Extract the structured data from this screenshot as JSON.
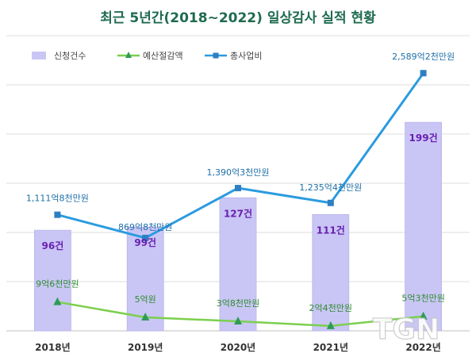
{
  "chart_data": {
    "type": "bar",
    "title": "최근 5년간(2018~2022) 일상감사 실적 현황",
    "categories": [
      "2018년",
      "2019년",
      "2020년",
      "2021년",
      "2022년"
    ],
    "legend_position": "top-left",
    "grid": true,
    "series": [
      {
        "name": "신청건수",
        "kind": "bar",
        "color": "#c9c6f5",
        "values": [
          96,
          99,
          127,
          111,
          199
        ],
        "labels": [
          "96건",
          "99건",
          "127건",
          "111건",
          "199건"
        ]
      },
      {
        "name": "예산절감액",
        "kind": "line",
        "color": "#7ccf4e",
        "marker_color": "#2e9b57",
        "values": [
          9.6,
          5,
          3.8,
          2.4,
          5.3
        ],
        "labels": [
          "9억6천만원",
          "5억원",
          "3억8천만원",
          "2억4천만원",
          "5억3천만원"
        ]
      },
      {
        "name": "총사업비",
        "kind": "line",
        "color": "#2b9be0",
        "marker_color": "#2e7fc2",
        "values": [
          1111.8,
          869.8,
          1390.3,
          1235.4,
          2589.2
        ],
        "labels": [
          "1,111억8천만원",
          "869억8천만원",
          "1,390억3천만원",
          "1,235억4천만원",
          "2,589억2천만원"
        ]
      }
    ]
  },
  "watermark": "TGN"
}
